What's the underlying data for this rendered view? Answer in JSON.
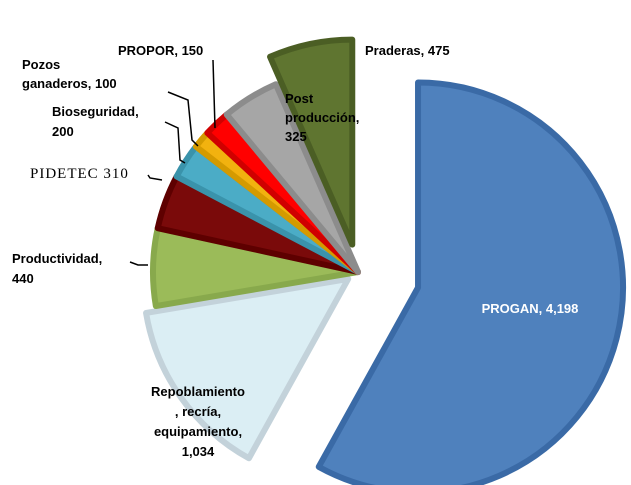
{
  "chart_data": {
    "type": "pie",
    "labels": [
      [
        "PROGAN, 4,198"
      ],
      [
        "Repoblamiento",
        ", recría,",
        "equipamiento,",
        "1,034"
      ],
      [
        "Productividad,",
        "440"
      ],
      [
        "PIDETEC 310"
      ],
      [
        "Bioseguridad,",
        "200"
      ],
      [
        "Pozos",
        "ganaderos, 100"
      ],
      [
        "PROPOR, 150"
      ],
      [
        "Post",
        "producción,",
        "325"
      ],
      [
        "Praderas, 475"
      ]
    ],
    "values": [
      4198,
      1034,
      440,
      310,
      200,
      100,
      150,
      325,
      475
    ],
    "colors": [
      "#4f81bd",
      "#dbeef4",
      "#9bbb59",
      "#7a0a0a",
      "#4bacc6",
      "#f2b20f",
      "#ff0000",
      "#a6a6a6",
      "#5f7530"
    ]
  }
}
